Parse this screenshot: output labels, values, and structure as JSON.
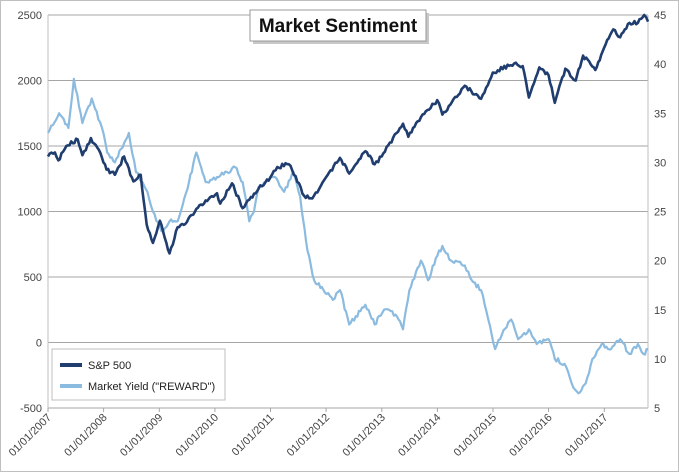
{
  "chart_data": {
    "type": "line",
    "title": "Market Sentiment",
    "xlabel": "",
    "ylabel": "",
    "y2label": "",
    "x_range": [
      "2007-01-01",
      "2017-10-15"
    ],
    "x_ticks": [
      "01/01/2007",
      "01/01/2008",
      "01/01/2009",
      "01/01/2010",
      "01/01/2011",
      "01/01/2012",
      "01/01/2013",
      "01/01/2014",
      "01/01/2015",
      "01/01/2016",
      "01/01/2017"
    ],
    "ylim": [
      -500,
      2500
    ],
    "y_ticks": [
      -500,
      0,
      500,
      1000,
      1500,
      2000,
      2500
    ],
    "y2lim": [
      5,
      45
    ],
    "y2_ticks": [
      5,
      10,
      15,
      20,
      25,
      30,
      35,
      40,
      45
    ],
    "grid": "horizontal",
    "legend_position": "bottom-left",
    "series": [
      {
        "name": "S&P 500",
        "axis": "left",
        "color": "#1f3d6e",
        "points": [
          [
            "2007-01-01",
            1420
          ],
          [
            "2007-02-15",
            1450
          ],
          [
            "2007-03-10",
            1390
          ],
          [
            "2007-05-01",
            1500
          ],
          [
            "2007-07-15",
            1550
          ],
          [
            "2007-08-15",
            1430
          ],
          [
            "2007-10-10",
            1560
          ],
          [
            "2007-12-01",
            1470
          ],
          [
            "2008-01-20",
            1320
          ],
          [
            "2008-03-15",
            1280
          ],
          [
            "2008-05-15",
            1420
          ],
          [
            "2008-07-15",
            1230
          ],
          [
            "2008-09-01",
            1280
          ],
          [
            "2008-10-10",
            900
          ],
          [
            "2008-11-20",
            760
          ],
          [
            "2009-01-05",
            930
          ],
          [
            "2009-03-09",
            680
          ],
          [
            "2009-05-01",
            880
          ],
          [
            "2009-07-01",
            920
          ],
          [
            "2009-09-01",
            1020
          ],
          [
            "2009-12-01",
            1110
          ],
          [
            "2010-01-15",
            1140
          ],
          [
            "2010-02-05",
            1060
          ],
          [
            "2010-04-23",
            1215
          ],
          [
            "2010-07-02",
            1025
          ],
          [
            "2010-08-15",
            1090
          ],
          [
            "2010-10-15",
            1175
          ],
          [
            "2010-12-31",
            1260
          ],
          [
            "2011-02-15",
            1340
          ],
          [
            "2011-05-01",
            1360
          ],
          [
            "2011-06-15",
            1270
          ],
          [
            "2011-08-10",
            1120
          ],
          [
            "2011-10-03",
            1100
          ],
          [
            "2011-12-31",
            1260
          ],
          [
            "2012-04-01",
            1410
          ],
          [
            "2012-06-01",
            1290
          ],
          [
            "2012-09-15",
            1460
          ],
          [
            "2012-11-15",
            1360
          ],
          [
            "2012-12-31",
            1420
          ],
          [
            "2013-05-20",
            1670
          ],
          [
            "2013-06-24",
            1570
          ],
          [
            "2013-09-15",
            1720
          ],
          [
            "2013-12-31",
            1850
          ],
          [
            "2014-02-03",
            1740
          ],
          [
            "2014-06-30",
            1960
          ],
          [
            "2014-10-15",
            1860
          ],
          [
            "2014-12-31",
            2060
          ],
          [
            "2015-05-20",
            2130
          ],
          [
            "2015-07-15",
            2110
          ],
          [
            "2015-08-25",
            1870
          ],
          [
            "2015-11-01",
            2100
          ],
          [
            "2016-01-01",
            2040
          ],
          [
            "2016-02-11",
            1830
          ],
          [
            "2016-04-20",
            2090
          ],
          [
            "2016-06-27",
            2000
          ],
          [
            "2016-08-15",
            2190
          ],
          [
            "2016-11-03",
            2080
          ],
          [
            "2016-12-31",
            2250
          ],
          [
            "2017-03-01",
            2390
          ],
          [
            "2017-04-15",
            2330
          ],
          [
            "2017-06-15",
            2440
          ],
          [
            "2017-08-10",
            2440
          ],
          [
            "2017-09-20",
            2500
          ],
          [
            "2017-10-15",
            2450
          ]
        ]
      },
      {
        "name": "Market Yield (\"REWARD\")",
        "axis": "right",
        "color": "#8cbbe0",
        "points": [
          [
            "2007-01-01",
            33
          ],
          [
            "2007-03-15",
            35
          ],
          [
            "2007-05-15",
            33.5
          ],
          [
            "2007-06-20",
            38.5
          ],
          [
            "2007-08-15",
            34
          ],
          [
            "2007-10-15",
            36.5
          ],
          [
            "2007-12-31",
            33
          ],
          [
            "2008-01-25",
            31
          ],
          [
            "2008-03-15",
            30
          ],
          [
            "2008-06-15",
            33
          ],
          [
            "2008-08-01",
            29
          ],
          [
            "2008-10-15",
            27
          ],
          [
            "2008-11-20",
            25
          ],
          [
            "2009-01-15",
            23
          ],
          [
            "2009-03-09",
            24
          ],
          [
            "2009-05-01",
            24
          ],
          [
            "2009-07-15",
            28
          ],
          [
            "2009-09-01",
            31
          ],
          [
            "2009-11-01",
            28
          ],
          [
            "2010-01-15",
            28.5
          ],
          [
            "2010-05-15",
            29.5
          ],
          [
            "2010-07-02",
            28
          ],
          [
            "2010-08-15",
            24
          ],
          [
            "2010-09-15",
            25
          ],
          [
            "2010-10-15",
            27.5
          ],
          [
            "2010-12-01",
            28
          ],
          [
            "2011-02-01",
            28.5
          ],
          [
            "2011-04-01",
            27
          ],
          [
            "2011-06-01",
            29
          ],
          [
            "2011-07-15",
            26.5
          ],
          [
            "2011-09-01",
            21
          ],
          [
            "2011-10-15",
            18
          ],
          [
            "2011-12-15",
            17
          ],
          [
            "2012-02-15",
            16
          ],
          [
            "2012-04-01",
            17
          ],
          [
            "2012-06-01",
            13.5
          ],
          [
            "2012-09-15",
            15.5
          ],
          [
            "2012-11-15",
            13.5
          ],
          [
            "2013-01-15",
            15
          ],
          [
            "2013-04-01",
            14.5
          ],
          [
            "2013-05-20",
            13
          ],
          [
            "2013-07-01",
            17
          ],
          [
            "2013-09-15",
            20
          ],
          [
            "2013-11-01",
            18
          ],
          [
            "2014-01-01",
            20.5
          ],
          [
            "2014-02-03",
            21.5
          ],
          [
            "2014-04-01",
            20
          ],
          [
            "2014-06-30",
            19.5
          ],
          [
            "2014-08-15",
            18
          ],
          [
            "2014-10-15",
            17
          ],
          [
            "2014-12-01",
            14
          ],
          [
            "2015-01-15",
            11
          ],
          [
            "2015-03-01",
            12.5
          ],
          [
            "2015-05-01",
            14
          ],
          [
            "2015-06-15",
            12
          ],
          [
            "2015-08-25",
            13
          ],
          [
            "2015-10-15",
            11.5
          ],
          [
            "2016-01-01",
            12
          ],
          [
            "2016-02-11",
            10
          ],
          [
            "2016-04-15",
            9.5
          ],
          [
            "2016-06-01",
            7.5
          ],
          [
            "2016-07-15",
            6.5
          ],
          [
            "2016-09-01",
            7.5
          ],
          [
            "2016-10-15",
            10
          ],
          [
            "2016-12-15",
            11.5
          ],
          [
            "2017-02-15",
            11
          ],
          [
            "2017-04-15",
            12
          ],
          [
            "2017-06-15",
            10.5
          ],
          [
            "2017-08-10",
            11.5
          ],
          [
            "2017-09-15",
            10.5
          ],
          [
            "2017-10-15",
            11
          ]
        ]
      }
    ]
  }
}
